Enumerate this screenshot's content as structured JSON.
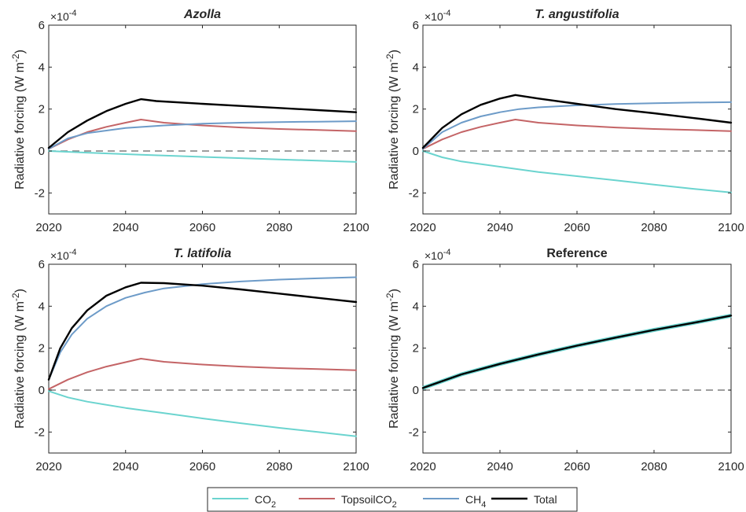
{
  "figure": {
    "legend": {
      "location": "bottom-center",
      "entries": [
        {
          "label": "CO",
          "sub": "2",
          "color": "#6bd4cf"
        },
        {
          "label": "TopsoilCO",
          "sub": "2",
          "color": "#c46466"
        },
        {
          "label": "CH",
          "sub": "4",
          "color": "#6d9bc8"
        },
        {
          "label": "Total",
          "sub": "",
          "color": "#000000"
        }
      ]
    },
    "zero_line_color": "#7f7f7f"
  },
  "chart_data": [
    {
      "type": "line",
      "title": "Azolla",
      "title_italic": true,
      "ylabel": "Radiative forcing (W m",
      "ylabel_sup": "-2",
      "ylabel_close": ")",
      "exponent_base": "×10",
      "exponent_power": "-4",
      "xlim": [
        2020,
        2100
      ],
      "ylim": [
        -3,
        6
      ],
      "xticks": [
        2020,
        2040,
        2060,
        2080,
        2100
      ],
      "yticks": [
        -2,
        0,
        2,
        4,
        6
      ],
      "grid": false,
      "series": [
        {
          "name": "CO2",
          "color": "#6bd4cf",
          "x": [
            2020,
            2030,
            2044,
            2060,
            2080,
            2100
          ],
          "y": [
            0.0,
            -0.08,
            -0.18,
            -0.28,
            -0.4,
            -0.52
          ]
        },
        {
          "name": "TopsoilCO2",
          "color": "#c46466",
          "x": [
            2020,
            2025,
            2030,
            2035,
            2040,
            2044,
            2050,
            2060,
            2070,
            2080,
            2090,
            2100
          ],
          "y": [
            0.1,
            0.55,
            0.9,
            1.15,
            1.35,
            1.5,
            1.35,
            1.22,
            1.12,
            1.05,
            1.0,
            0.95
          ]
        },
        {
          "name": "CH4",
          "color": "#6d9bc8",
          "x": [
            2020,
            2025,
            2030,
            2040,
            2050,
            2060,
            2070,
            2080,
            2090,
            2100
          ],
          "y": [
            0.1,
            0.6,
            0.85,
            1.1,
            1.22,
            1.3,
            1.35,
            1.38,
            1.4,
            1.42
          ]
        },
        {
          "name": "Total",
          "color": "#000000",
          "x": [
            2020,
            2025,
            2030,
            2035,
            2040,
            2044,
            2048,
            2060,
            2070,
            2080,
            2090,
            2100
          ],
          "y": [
            0.15,
            0.9,
            1.45,
            1.9,
            2.25,
            2.47,
            2.38,
            2.25,
            2.15,
            2.05,
            1.95,
            1.85
          ]
        }
      ]
    },
    {
      "type": "line",
      "title": "T. angustifolia",
      "title_italic": true,
      "ylabel": "Radiative forcing (W m",
      "ylabel_sup": "-2",
      "ylabel_close": ")",
      "exponent_base": "×10",
      "exponent_power": "-4",
      "xlim": [
        2020,
        2100
      ],
      "ylim": [
        -3,
        6
      ],
      "xticks": [
        2020,
        2040,
        2060,
        2080,
        2100
      ],
      "yticks": [
        -2,
        0,
        2,
        4,
        6
      ],
      "grid": false,
      "series": [
        {
          "name": "CO2",
          "color": "#6bd4cf",
          "x": [
            2020,
            2025,
            2030,
            2040,
            2050,
            2060,
            2070,
            2080,
            2090,
            2100
          ],
          "y": [
            0.0,
            -0.3,
            -0.5,
            -0.75,
            -1.0,
            -1.2,
            -1.4,
            -1.6,
            -1.8,
            -1.98
          ]
        },
        {
          "name": "TopsoilCO2",
          "color": "#c46466",
          "x": [
            2020,
            2025,
            2030,
            2035,
            2040,
            2044,
            2050,
            2060,
            2070,
            2080,
            2090,
            2100
          ],
          "y": [
            0.1,
            0.55,
            0.9,
            1.15,
            1.35,
            1.5,
            1.35,
            1.22,
            1.12,
            1.05,
            1.0,
            0.95
          ]
        },
        {
          "name": "CH4",
          "color": "#6d9bc8",
          "x": [
            2020,
            2025,
            2030,
            2035,
            2040,
            2045,
            2050,
            2060,
            2070,
            2080,
            2090,
            2100
          ],
          "y": [
            0.1,
            0.9,
            1.35,
            1.65,
            1.85,
            2.0,
            2.08,
            2.18,
            2.24,
            2.28,
            2.31,
            2.33
          ]
        },
        {
          "name": "Total",
          "color": "#000000",
          "x": [
            2020,
            2025,
            2030,
            2035,
            2040,
            2044,
            2050,
            2060,
            2070,
            2080,
            2090,
            2100
          ],
          "y": [
            0.15,
            1.1,
            1.75,
            2.2,
            2.5,
            2.67,
            2.5,
            2.25,
            2.0,
            1.8,
            1.58,
            1.35
          ]
        }
      ]
    },
    {
      "type": "line",
      "title": "T. latifolia",
      "title_italic": true,
      "ylabel": "Radiative forcing (W m",
      "ylabel_sup": "-2",
      "ylabel_close": ")",
      "exponent_base": "×10",
      "exponent_power": "-4",
      "xlim": [
        2020,
        2100
      ],
      "ylim": [
        -3,
        6
      ],
      "xticks": [
        2020,
        2040,
        2060,
        2080,
        2100
      ],
      "yticks": [
        -2,
        0,
        2,
        4,
        6
      ],
      "grid": false,
      "series": [
        {
          "name": "CO2",
          "color": "#6bd4cf",
          "x": [
            2020,
            2025,
            2030,
            2040,
            2050,
            2060,
            2070,
            2080,
            2090,
            2100
          ],
          "y": [
            -0.05,
            -0.35,
            -0.55,
            -0.85,
            -1.1,
            -1.35,
            -1.58,
            -1.8,
            -2.0,
            -2.2
          ]
        },
        {
          "name": "TopsoilCO2",
          "color": "#c46466",
          "x": [
            2020,
            2025,
            2030,
            2035,
            2040,
            2044,
            2050,
            2060,
            2070,
            2080,
            2090,
            2100
          ],
          "y": [
            0.05,
            0.5,
            0.85,
            1.12,
            1.33,
            1.5,
            1.35,
            1.22,
            1.12,
            1.05,
            1.0,
            0.95
          ]
        },
        {
          "name": "CH4",
          "color": "#6d9bc8",
          "x": [
            2020,
            2023,
            2026,
            2030,
            2035,
            2040,
            2045,
            2050,
            2060,
            2070,
            2080,
            2090,
            2100
          ],
          "y": [
            0.5,
            1.8,
            2.65,
            3.4,
            4.0,
            4.4,
            4.65,
            4.85,
            5.05,
            5.18,
            5.27,
            5.33,
            5.38
          ]
        },
        {
          "name": "Total",
          "color": "#000000",
          "x": [
            2020,
            2023,
            2026,
            2030,
            2035,
            2040,
            2044,
            2050,
            2060,
            2070,
            2080,
            2090,
            2100
          ],
          "y": [
            0.5,
            2.0,
            2.95,
            3.8,
            4.5,
            4.9,
            5.12,
            5.1,
            4.98,
            4.8,
            4.6,
            4.4,
            4.2
          ]
        }
      ]
    },
    {
      "type": "line",
      "title": "Reference",
      "title_italic": false,
      "ylabel": "Radiative forcing (W m",
      "ylabel_sup": "-2",
      "ylabel_close": ")",
      "exponent_base": "×10",
      "exponent_power": "-4",
      "xlim": [
        2020,
        2100
      ],
      "ylim": [
        -3,
        6
      ],
      "xticks": [
        2020,
        2040,
        2060,
        2080,
        2100
      ],
      "yticks": [
        -2,
        0,
        2,
        4,
        6
      ],
      "grid": false,
      "series": [
        {
          "name": "CO2",
          "color": "#6bd4cf",
          "x": [
            2020,
            2030,
            2040,
            2050,
            2060,
            2070,
            2080,
            2090,
            2100
          ],
          "y": [
            0.1,
            0.75,
            1.25,
            1.7,
            2.12,
            2.5,
            2.87,
            3.2,
            3.55
          ]
        },
        {
          "name": "Total",
          "color": "#000000",
          "x": [
            2020,
            2030,
            2040,
            2050,
            2060,
            2070,
            2080,
            2090,
            2100
          ],
          "y": [
            0.1,
            0.75,
            1.25,
            1.7,
            2.12,
            2.5,
            2.87,
            3.2,
            3.55
          ]
        }
      ]
    }
  ]
}
